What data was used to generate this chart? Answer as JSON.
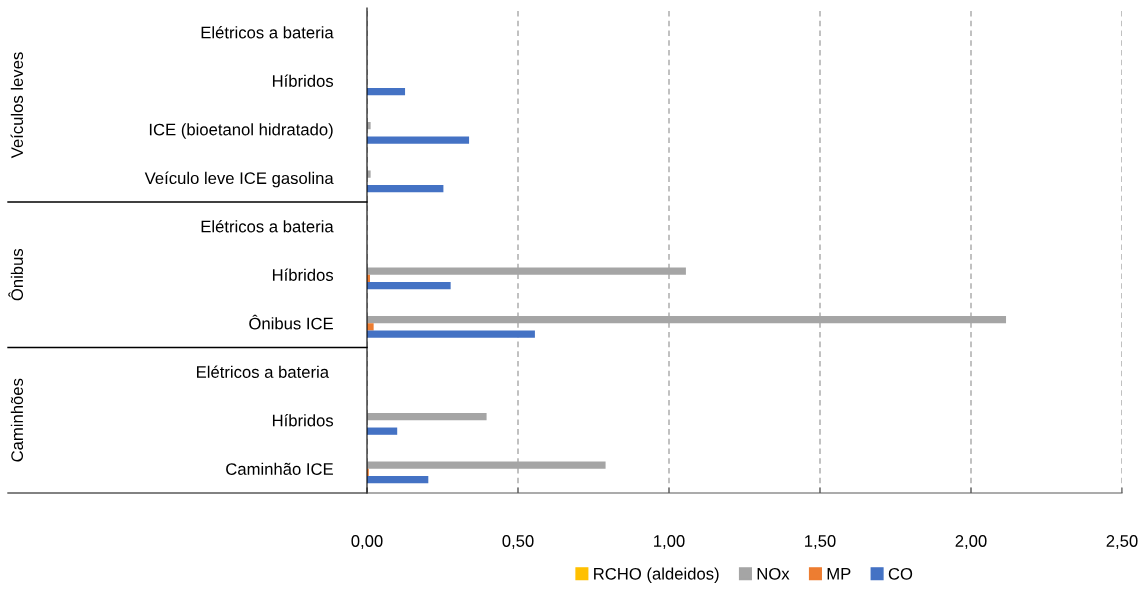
{
  "chart_data": {
    "type": "bar",
    "orientation": "horizontal",
    "categories": [
      "Elétricos a bateria",
      "Híbridos",
      "ICE (bioetanol hidratado)",
      "Veículo leve ICE gasolina",
      "Elétricos a bateria",
      "Híbridos",
      "Ônibus ICE",
      "Elétricos a bateria ",
      "Híbridos",
      "Caminhão ICE"
    ],
    "series": [
      {
        "name": "RCHO (aldeidos)",
        "color": "#ffc000",
        "values": [
          null,
          null,
          null,
          null,
          null,
          null,
          null,
          null,
          null,
          null
        ]
      },
      {
        "name": "NOx",
        "color": "#a5a5a5",
        "values": [
          null,
          null,
          0.012,
          0.012,
          null,
          1.056,
          2.116,
          null,
          0.396,
          0.79
        ]
      },
      {
        "name": "MP",
        "color": "#ed7d31",
        "values": [
          null,
          null,
          null,
          null,
          null,
          0.01,
          0.022,
          null,
          null,
          0.006
        ]
      },
      {
        "name": "CO",
        "color": "#4472c4",
        "values": [
          null,
          0.126,
          0.338,
          0.253,
          null,
          0.277,
          0.556,
          null,
          0.1,
          0.203
        ]
      }
    ],
    "annotations": [
      "Veículos leves",
      "Ônibus",
      "Caminhões"
    ],
    "xlim": [
      0,
      2.5
    ],
    "xticks": [
      {
        "value": 0,
        "label": "0,00"
      },
      {
        "value": 0.5,
        "label": "0,50"
      },
      {
        "value": 1,
        "label": "1,00"
      },
      {
        "value": 1.5,
        "label": "1,50"
      },
      {
        "value": 2,
        "label": "2,00"
      },
      {
        "value": 2.5,
        "label": "2,50"
      }
    ],
    "grid": "x",
    "legend": "bottom"
  }
}
